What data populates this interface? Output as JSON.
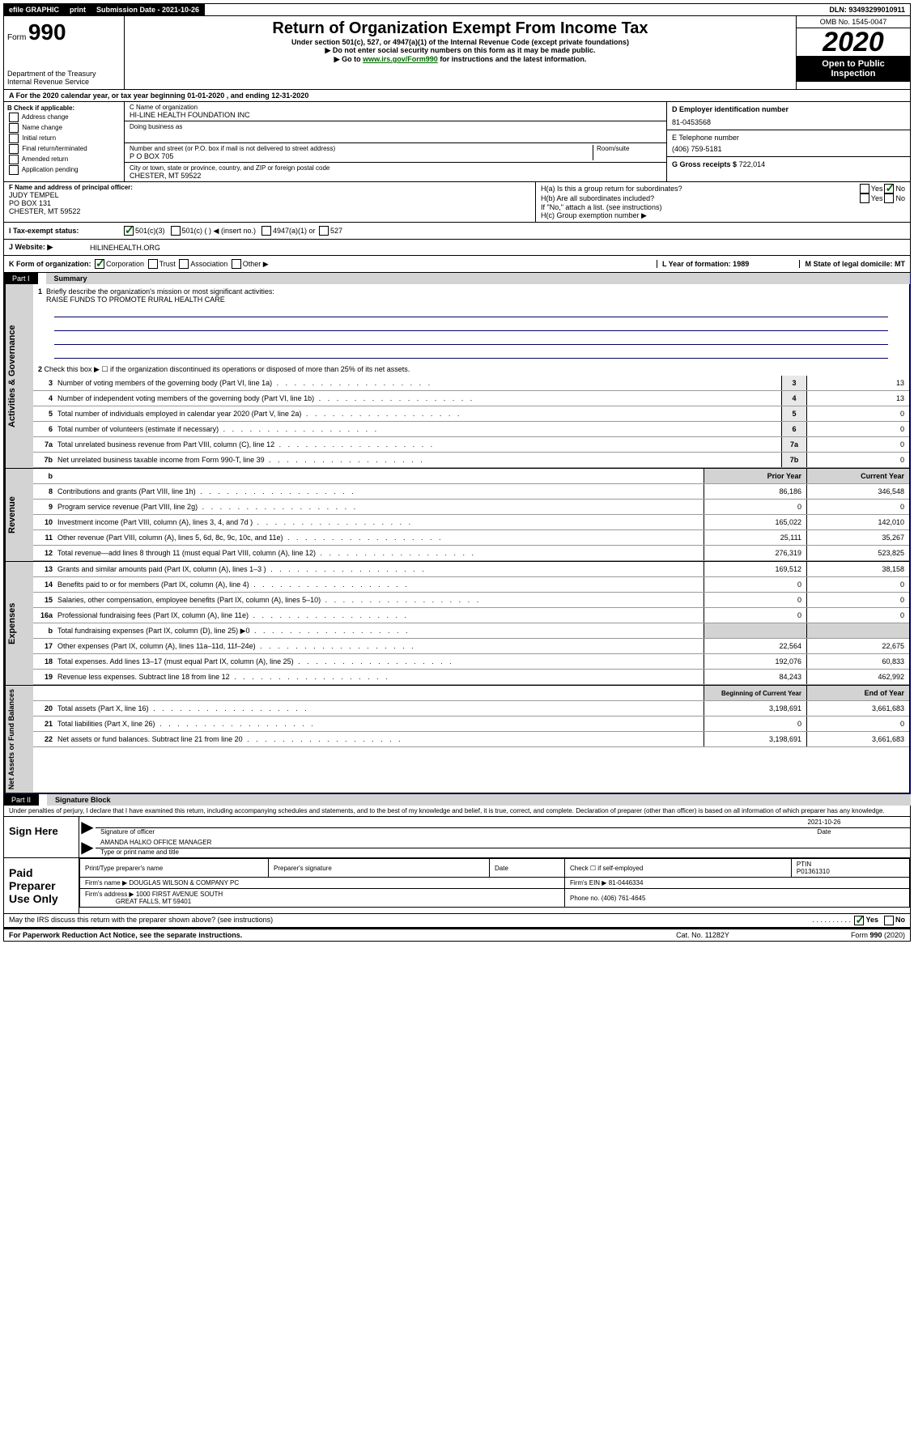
{
  "topbar": {
    "efile": "efile GRAPHIC",
    "print": "print",
    "submission": "Submission Date - 2021-10-26",
    "dln": "DLN: 93493299010911"
  },
  "header": {
    "form_prefix": "Form",
    "form_num": "990",
    "dept": "Department of the Treasury",
    "irs": "Internal Revenue Service",
    "title": "Return of Organization Exempt From Income Tax",
    "sub1": "Under section 501(c), 527, or 4947(a)(1) of the Internal Revenue Code (except private foundations)",
    "sub2": "▶ Do not enter social security numbers on this form as it may be made public.",
    "sub3_pre": "▶ Go to ",
    "sub3_link": "www.irs.gov/Form990",
    "sub3_post": " for instructions and the latest information.",
    "omb": "OMB No. 1545-0047",
    "year": "2020",
    "open": "Open to Public Inspection"
  },
  "section_a": "A For the 2020 calendar year, or tax year beginning 01-01-2020    , and ending 12-31-2020",
  "check_b": {
    "title": "B Check if applicable:",
    "opts": [
      "Address change",
      "Name change",
      "Initial return",
      "Final return/terminated",
      "Amended return",
      "Application pending"
    ]
  },
  "entity": {
    "c_label": "C Name of organization",
    "c_name": "HI-LINE HEALTH FOUNDATION INC",
    "dba": "Doing business as",
    "addr_label": "Number and street (or P.O. box if mail is not delivered to street address)",
    "room": "Room/suite",
    "addr": "P O BOX 705",
    "city_label": "City or town, state or province, country, and ZIP or foreign postal code",
    "city": "CHESTER, MT  59522",
    "d_label": "D Employer identification number",
    "d_val": "81-0453568",
    "e_label": "E Telephone number",
    "e_val": "(406) 759-5181",
    "g_label": "G Gross receipts $",
    "g_val": "722,014"
  },
  "officer": {
    "f_label": "F  Name and address of principal officer:",
    "name": "JUDY TEMPEL",
    "addr1": "PO BOX 131",
    "addr2": "CHESTER, MT  59522",
    "ha": "H(a)  Is this a group return for subordinates?",
    "hb": "H(b)  Are all subordinates included?",
    "hb_note": "If \"No,\" attach a list. (see instructions)",
    "hc": "H(c)  Group exemption number ▶"
  },
  "status": {
    "i": "I    Tax-exempt status:",
    "c3": "501(c)(3)",
    "c": "501(c) (  ) ◀ (insert no.)",
    "a1": "4947(a)(1) or",
    "s527": "527"
  },
  "website": {
    "j": "J    Website: ▶",
    "val": "HILINEHEALTH.ORG"
  },
  "korg": {
    "k": "K Form of organization:",
    "corp": "Corporation",
    "trust": "Trust",
    "assoc": "Association",
    "other": "Other ▶",
    "l": "L Year of formation: 1989",
    "m": "M State of legal domicile: MT"
  },
  "part1": {
    "tab": "Part I",
    "title": "Summary",
    "q1": "Briefly describe the organization's mission or most significant activities:",
    "q1_val": "RAISE FUNDS TO PROMOTE RURAL HEALTH CARE",
    "q2": "Check this box ▶ ☐  if the organization discontinued its operations or disposed of more than 25% of its net assets.",
    "lines_single": [
      {
        "n": "3",
        "t": "Number of voting members of the governing body (Part VI, line 1a)",
        "v": "13"
      },
      {
        "n": "4",
        "t": "Number of independent voting members of the governing body (Part VI, line 1b)",
        "v": "13"
      },
      {
        "n": "5",
        "t": "Total number of individuals employed in calendar year 2020 (Part V, line 2a)",
        "v": "0"
      },
      {
        "n": "6",
        "t": "Total number of volunteers (estimate if necessary)",
        "v": "0"
      },
      {
        "n": "7a",
        "t": "Total unrelated business revenue from Part VIII, column (C), line 12",
        "v": "0"
      },
      {
        "n": "7b",
        "t": "Net unrelated business taxable income from Form 990-T, line 39",
        "v": "0"
      }
    ],
    "col_prior": "Prior Year",
    "col_current": "Current Year",
    "revenue": [
      {
        "n": "8",
        "t": "Contributions and grants (Part VIII, line 1h)",
        "p": "86,186",
        "c": "346,548"
      },
      {
        "n": "9",
        "t": "Program service revenue (Part VIII, line 2g)",
        "p": "0",
        "c": "0"
      },
      {
        "n": "10",
        "t": "Investment income (Part VIII, column (A), lines 3, 4, and 7d )",
        "p": "165,022",
        "c": "142,010"
      },
      {
        "n": "11",
        "t": "Other revenue (Part VIII, column (A), lines 5, 6d, 8c, 9c, 10c, and 11e)",
        "p": "25,111",
        "c": "35,267"
      },
      {
        "n": "12",
        "t": "Total revenue—add lines 8 through 11 (must equal Part VIII, column (A), line 12)",
        "p": "276,319",
        "c": "523,825"
      }
    ],
    "expenses": [
      {
        "n": "13",
        "t": "Grants and similar amounts paid (Part IX, column (A), lines 1–3 )",
        "p": "169,512",
        "c": "38,158"
      },
      {
        "n": "14",
        "t": "Benefits paid to or for members (Part IX, column (A), line 4)",
        "p": "0",
        "c": "0"
      },
      {
        "n": "15",
        "t": "Salaries, other compensation, employee benefits (Part IX, column (A), lines 5–10)",
        "p": "0",
        "c": "0"
      },
      {
        "n": "16a",
        "t": "Professional fundraising fees (Part IX, column (A), line 11e)",
        "p": "0",
        "c": "0"
      },
      {
        "n": "b",
        "t": "Total fundraising expenses (Part IX, column (D), line 25) ▶0",
        "p": "",
        "c": "",
        "grey": true
      },
      {
        "n": "17",
        "t": "Other expenses (Part IX, column (A), lines 11a–11d, 11f–24e)",
        "p": "22,564",
        "c": "22,675"
      },
      {
        "n": "18",
        "t": "Total expenses. Add lines 13–17 (must equal Part IX, column (A), line 25)",
        "p": "192,076",
        "c": "60,833"
      },
      {
        "n": "19",
        "t": "Revenue less expenses. Subtract line 18 from line 12",
        "p": "84,243",
        "c": "462,992"
      }
    ],
    "col_begin": "Beginning of Current Year",
    "col_end": "End of Year",
    "netassets": [
      {
        "n": "20",
        "t": "Total assets (Part X, line 16)",
        "p": "3,198,691",
        "c": "3,661,683"
      },
      {
        "n": "21",
        "t": "Total liabilities (Part X, line 26)",
        "p": "0",
        "c": "0"
      },
      {
        "n": "22",
        "t": "Net assets or fund balances. Subtract line 21 from line 20",
        "p": "3,198,691",
        "c": "3,661,683"
      }
    ]
  },
  "part2": {
    "tab": "Part II",
    "title": "Signature Block",
    "perjury": "Under penalties of perjury, I declare that I have examined this return, including accompanying schedules and statements, and to the best of my knowledge and belief, it is true, correct, and complete. Declaration of preparer (other than officer) is based on all information of which preparer has any knowledge."
  },
  "sign": {
    "label": "Sign Here",
    "sig_officer": "Signature of officer",
    "date": "2021-10-26",
    "date_label": "Date",
    "name": "AMANDA HALKO  OFFICE MANAGER",
    "name_label": "Type or print name and title"
  },
  "paid": {
    "label": "Paid Preparer Use Only",
    "h1": "Print/Type preparer's name",
    "h2": "Preparer's signature",
    "h3": "Date",
    "h4_a": "Check ☐ if self-employed",
    "h4_b": "PTIN",
    "ptin": "P01361310",
    "firm_name_l": "Firm's name    ▶",
    "firm_name": "DOUGLAS WILSON & COMPANY PC",
    "firm_ein_l": "Firm's EIN ▶",
    "firm_ein": "81-0446334",
    "firm_addr_l": "Firm's address ▶",
    "firm_addr1": "1000 FIRST AVENUE SOUTH",
    "firm_addr2": "GREAT FALLS, MT  59401",
    "phone_l": "Phone no.",
    "phone": "(406) 761-4645"
  },
  "footer": {
    "discuss": "May the IRS discuss this return with the preparer shown above? (see instructions)",
    "yes": "Yes",
    "no": "No",
    "pra": "For Paperwork Reduction Act Notice, see the separate instructions.",
    "cat": "Cat. No. 11282Y",
    "form": "Form 990 (2020)"
  }
}
